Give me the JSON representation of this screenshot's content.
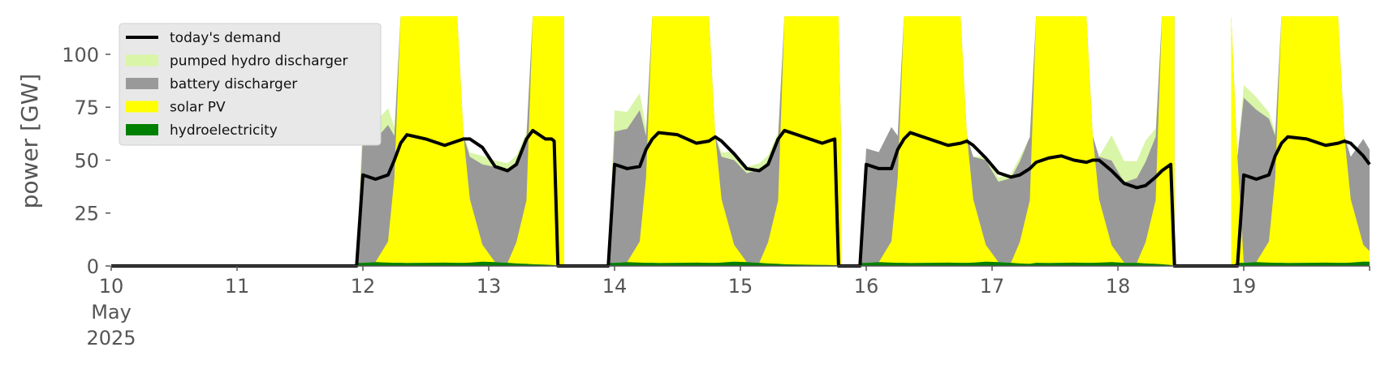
{
  "chart_data": {
    "type": "area",
    "ylabel": "power [GW]",
    "ylim": [
      0,
      118
    ],
    "xlim": [
      "2025-05-10",
      "2025-05-20"
    ],
    "x_ticks": [
      {
        "day": 10,
        "label": "10",
        "sub1": "May",
        "sub2": "2025"
      },
      {
        "day": 11,
        "label": "11"
      },
      {
        "day": 12,
        "label": "12"
      },
      {
        "day": 13,
        "label": "13"
      },
      {
        "day": 14,
        "label": "14"
      },
      {
        "day": 15,
        "label": "15"
      },
      {
        "day": 16,
        "label": "16"
      },
      {
        "day": 17,
        "label": "17"
      },
      {
        "day": 18,
        "label": "18"
      },
      {
        "day": 19,
        "label": "19"
      }
    ],
    "y_ticks": [
      0,
      25,
      50,
      75,
      100
    ],
    "legend_position": "top-left",
    "legend": [
      {
        "label": "today's demand",
        "color": "#000000",
        "kind": "line"
      },
      {
        "label": "pumped hydro discharger",
        "color": "#d9f5a7",
        "kind": "patch"
      },
      {
        "label": "battery discharger",
        "color": "#999999",
        "kind": "patch"
      },
      {
        "label": "solar PV",
        "color": "#ffff00",
        "kind": "patch"
      },
      {
        "label": "hydroelectricity",
        "color": "#008000",
        "kind": "patch"
      }
    ],
    "segments": [
      {
        "x": [
          11.95,
          12.0,
          12.1,
          12.2,
          12.25,
          12.3,
          12.35,
          12.5,
          12.65,
          12.75,
          12.8,
          12.85,
          12.95,
          13.05,
          13.15,
          13.22,
          13.3,
          13.35,
          13.45,
          13.5,
          13.52,
          13.55,
          13.6
        ],
        "demand": [
          0,
          43,
          41,
          43,
          50,
          58,
          62,
          60,
          57,
          59,
          60,
          60,
          56,
          47,
          45,
          48,
          60,
          64,
          60,
          60,
          59,
          0,
          0
        ],
        "hydro": [
          1.5,
          1.5,
          1.8,
          1.6,
          1.5,
          1.5,
          1.4,
          1.5,
          1.6,
          1.5,
          1.5,
          1.6,
          2.0,
          1.8,
          1.5,
          1.2,
          1.0,
          0.8,
          0.6,
          0.5,
          0.4,
          0.3,
          0
        ],
        "solar": [
          0,
          0,
          0,
          10,
          40,
          118,
          118,
          118,
          118,
          118,
          60,
          30,
          8,
          0,
          0,
          10,
          30,
          118,
          118,
          118,
          118,
          118,
          118
        ],
        "battery": [
          0,
          60,
          58,
          55,
          20,
          0,
          0,
          0,
          0,
          0,
          0,
          20,
          38,
          45,
          44,
          38,
          30,
          0,
          0,
          0,
          0,
          0,
          0
        ],
        "pumped": [
          0,
          10,
          8,
          8,
          4,
          0,
          0,
          0,
          0,
          0,
          0,
          2,
          4,
          3,
          3,
          3,
          2,
          0,
          0,
          0,
          0,
          0,
          0
        ]
      },
      {
        "x": [
          13.95,
          14.0,
          14.1,
          14.2,
          14.25,
          14.3,
          14.35,
          14.5,
          14.65,
          14.75,
          14.8,
          14.85,
          14.95,
          15.05,
          15.15,
          15.22,
          15.3,
          15.35,
          15.5,
          15.65,
          15.75,
          15.78,
          15.8
        ],
        "demand": [
          0,
          48,
          46,
          47,
          55,
          60,
          63,
          62,
          58,
          59,
          61,
          59,
          53,
          46,
          45,
          48,
          60,
          64,
          61,
          58,
          60,
          0,
          0
        ],
        "hydro": [
          1.5,
          1.5,
          1.8,
          1.6,
          1.5,
          1.5,
          1.4,
          1.5,
          1.6,
          1.5,
          1.5,
          1.6,
          2.0,
          1.8,
          1.5,
          1.2,
          1.0,
          0.8,
          0.6,
          0.5,
          0.4,
          0.3,
          0
        ],
        "solar": [
          0,
          0,
          0,
          10,
          40,
          118,
          118,
          118,
          118,
          118,
          60,
          30,
          8,
          0,
          0,
          10,
          30,
          118,
          118,
          118,
          118,
          118,
          60
        ],
        "battery": [
          0,
          62,
          63,
          62,
          20,
          0,
          0,
          0,
          0,
          0,
          0,
          20,
          40,
          42,
          44,
          38,
          30,
          0,
          0,
          0,
          0,
          0,
          0
        ],
        "pumped": [
          0,
          10,
          8,
          8,
          4,
          0,
          0,
          0,
          0,
          0,
          0,
          2,
          4,
          3,
          3,
          3,
          2,
          0,
          0,
          0,
          0,
          0,
          0
        ]
      },
      {
        "x": [
          15.95,
          16.0,
          16.1,
          16.2,
          16.25,
          16.3,
          16.35,
          16.5,
          16.65,
          16.75,
          16.8,
          16.85,
          16.95,
          17.05,
          17.15,
          17.22,
          17.3,
          17.35,
          17.45,
          17.55,
          17.65,
          17.75,
          17.8,
          17.85,
          17.95,
          18.05,
          18.15,
          18.22,
          18.3,
          18.35,
          18.42,
          18.45
        ],
        "demand": [
          0,
          48,
          46,
          46,
          55,
          60,
          63,
          60,
          57,
          58,
          59,
          57,
          51,
          44,
          42,
          43,
          46,
          49,
          51,
          52,
          50,
          49,
          50,
          50,
          45,
          39,
          37,
          38,
          42,
          45,
          48,
          0
        ],
        "hydro": [
          1.5,
          1.5,
          1.8,
          1.6,
          1.5,
          1.5,
          1.4,
          1.5,
          1.6,
          1.5,
          1.5,
          1.6,
          2.0,
          1.8,
          1.5,
          1.2,
          1.0,
          1.5,
          1.4,
          1.5,
          1.6,
          1.5,
          1.5,
          1.6,
          1.8,
          1.5,
          1.5,
          1.2,
          1.0,
          0.8,
          0.5,
          0
        ],
        "solar": [
          0,
          0,
          0,
          10,
          40,
          118,
          118,
          118,
          118,
          118,
          60,
          30,
          8,
          0,
          0,
          10,
          30,
          118,
          118,
          118,
          118,
          118,
          60,
          30,
          8,
          0,
          0,
          10,
          30,
          118,
          118,
          118
        ],
        "battery": [
          0,
          54,
          52,
          54,
          20,
          0,
          0,
          0,
          0,
          0,
          0,
          20,
          40,
          38,
          40,
          38,
          30,
          0,
          0,
          0,
          0,
          0,
          0,
          20,
          40,
          38,
          40,
          38,
          30,
          0,
          0,
          0
        ],
        "pumped": [
          0,
          0,
          0,
          0,
          0,
          0,
          0,
          0,
          0,
          0,
          0,
          0,
          2,
          2,
          2,
          2,
          0,
          0,
          0,
          0,
          0,
          0,
          0,
          0,
          12,
          10,
          8,
          10,
          4,
          0,
          0,
          0
        ]
      },
      {
        "x": [
          18.9,
          18.95,
          19.0,
          19.1,
          19.2,
          19.25,
          19.3,
          19.35,
          19.5,
          19.65,
          19.75,
          19.8,
          19.85,
          19.95,
          20.0
        ],
        "demand": [
          0,
          0,
          43,
          41,
          43,
          52,
          58,
          61,
          60,
          57,
          58,
          59,
          58,
          52,
          48
        ],
        "hydro": [
          0,
          1.5,
          1.5,
          1.8,
          1.6,
          1.5,
          1.5,
          1.4,
          1.5,
          1.6,
          1.5,
          1.5,
          1.6,
          2.0,
          2.0
        ],
        "solar": [
          118,
          50,
          0,
          0,
          10,
          40,
          118,
          118,
          118,
          118,
          118,
          60,
          30,
          8,
          5
        ],
        "battery": [
          0,
          0,
          78,
          72,
          58,
          20,
          0,
          0,
          0,
          0,
          0,
          0,
          20,
          50,
          48
        ],
        "pumped": [
          0,
          0,
          6,
          6,
          3,
          2,
          0,
          0,
          0,
          0,
          0,
          0,
          0,
          0,
          0
        ]
      }
    ],
    "solar_gap_day": {
      "x": [
        12.55,
        12.7,
        12.75
      ],
      "solar": [
        118,
        118,
        118
      ]
    },
    "zero_demand_ranges": [
      [
        10.0,
        11.95
      ],
      [
        13.6,
        13.95
      ],
      [
        15.8,
        15.95
      ],
      [
        18.45,
        18.9
      ]
    ]
  }
}
